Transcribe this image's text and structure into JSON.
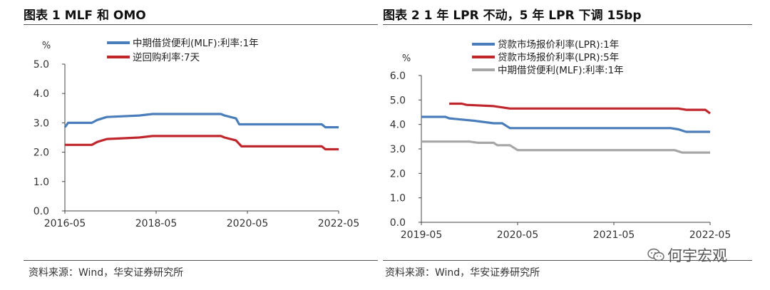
{
  "left_panel": {
    "title": "图表 1 MLF 和 OMO",
    "source": "资料来源：Wind，华安证券研究所"
  },
  "right_panel": {
    "title": "图表 2 1 年 LPR 不动，5 年 LPR 下调 15bp",
    "source": "资料来源：Wind，华安证券研究所"
  },
  "watermark": {
    "text": "何宇宏观",
    "icon": "wechat-icon"
  },
  "chart_data": [
    {
      "type": "line",
      "ylabel": "%",
      "ylim": [
        0,
        5
      ],
      "yticks": [
        "0.0",
        "1.0",
        "2.0",
        "3.0",
        "4.0",
        "5.0"
      ],
      "xlim": [
        2016.33,
        2022.33
      ],
      "xticks": [
        {
          "x": 2016.33,
          "label": "2016-05"
        },
        {
          "x": 2018.33,
          "label": "2018-05"
        },
        {
          "x": 2020.33,
          "label": "2020-05"
        },
        {
          "x": 2022.33,
          "label": "2022-05"
        }
      ],
      "legend_position": "top-left",
      "series": [
        {
          "name": "中期借贷便利(MLF):利率:1年",
          "color": "#4a7ebb",
          "points": [
            [
              2016.33,
              2.85
            ],
            [
              2016.4,
              3.0
            ],
            [
              2016.92,
              3.0
            ],
            [
              2017.04,
              3.1
            ],
            [
              2017.25,
              3.2
            ],
            [
              2017.96,
              3.25
            ],
            [
              2018.25,
              3.3
            ],
            [
              2019.75,
              3.3
            ],
            [
              2019.83,
              3.25
            ],
            [
              2020.08,
              3.15
            ],
            [
              2020.15,
              2.95
            ],
            [
              2021.96,
              2.95
            ],
            [
              2022.04,
              2.85
            ],
            [
              2022.33,
              2.85
            ]
          ]
        },
        {
          "name": "逆回购利率:7天",
          "color": "#c0272d",
          "points": [
            [
              2016.33,
              2.25
            ],
            [
              2016.92,
              2.25
            ],
            [
              2017.04,
              2.35
            ],
            [
              2017.25,
              2.45
            ],
            [
              2017.96,
              2.5
            ],
            [
              2018.25,
              2.55
            ],
            [
              2019.75,
              2.55
            ],
            [
              2019.83,
              2.5
            ],
            [
              2020.08,
              2.4
            ],
            [
              2020.2,
              2.2
            ],
            [
              2021.96,
              2.2
            ],
            [
              2022.04,
              2.1
            ],
            [
              2022.33,
              2.1
            ]
          ]
        }
      ]
    },
    {
      "type": "line",
      "ylabel": "%",
      "ylim": [
        0,
        6
      ],
      "yticks": [
        "0.0",
        "1.0",
        "2.0",
        "3.0",
        "4.0",
        "5.0",
        "6.0"
      ],
      "xlim": [
        2019.33,
        2022.33
      ],
      "xticks": [
        {
          "x": 2019.33,
          "label": "2019-05"
        },
        {
          "x": 2020.33,
          "label": "2020-05"
        },
        {
          "x": 2021.33,
          "label": "2021-05"
        },
        {
          "x": 2022.33,
          "label": "2022-05"
        }
      ],
      "legend_position": "top-left",
      "series": [
        {
          "name": "贷款市场报价利率(LPR):1年",
          "color": "#4a7ebb",
          "points": [
            [
              2019.33,
              4.31
            ],
            [
              2019.58,
              4.31
            ],
            [
              2019.62,
              4.25
            ],
            [
              2019.75,
              4.2
            ],
            [
              2019.88,
              4.15
            ],
            [
              2020.08,
              4.05
            ],
            [
              2020.17,
              4.05
            ],
            [
              2020.25,
              3.85
            ],
            [
              2021.92,
              3.85
            ],
            [
              2022.0,
              3.8
            ],
            [
              2022.08,
              3.7
            ],
            [
              2022.33,
              3.7
            ]
          ]
        },
        {
          "name": "贷款市场报价利率(LPR):5年",
          "color": "#c0272d",
          "points": [
            [
              2019.62,
              4.85
            ],
            [
              2019.75,
              4.85
            ],
            [
              2019.8,
              4.8
            ],
            [
              2020.08,
              4.75
            ],
            [
              2020.25,
              4.65
            ],
            [
              2022.0,
              4.65
            ],
            [
              2022.08,
              4.6
            ],
            [
              2022.28,
              4.6
            ],
            [
              2022.33,
              4.45
            ]
          ]
        },
        {
          "name": "中期借贷便利(MLF):利率:1年",
          "color": "#a6a6a6",
          "points": [
            [
              2019.33,
              3.3
            ],
            [
              2019.83,
              3.3
            ],
            [
              2019.92,
              3.25
            ],
            [
              2020.08,
              3.25
            ],
            [
              2020.12,
              3.15
            ],
            [
              2020.25,
              3.15
            ],
            [
              2020.33,
              2.95
            ],
            [
              2021.96,
              2.95
            ],
            [
              2022.04,
              2.85
            ],
            [
              2022.33,
              2.85
            ]
          ]
        }
      ]
    }
  ]
}
